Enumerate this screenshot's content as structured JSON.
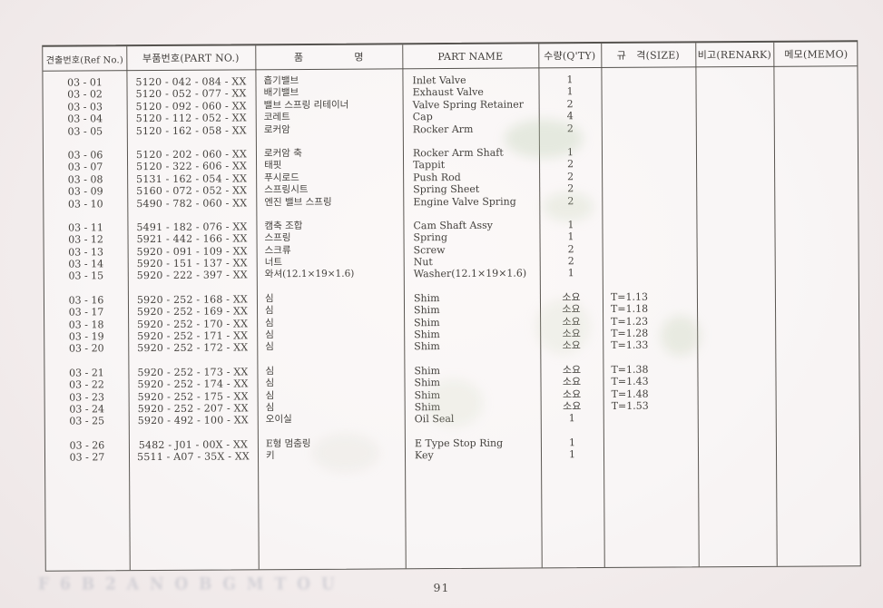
{
  "table": {
    "columns": [
      {
        "label": "견출번호(Ref No.)"
      },
      {
        "label": "부품번호(PART NO.)"
      },
      {
        "label": "품     명"
      },
      {
        "label": "PART NAME"
      },
      {
        "label": "수량(Q'TY)"
      },
      {
        "label": "규 격(SIZE)"
      },
      {
        "label": "비고(RENARK)"
      },
      {
        "label": "메모(MEMO)"
      }
    ],
    "groups": [
      {
        "rows": [
          [
            "03 - 01",
            "5120 - 042 - 084 - XX",
            "흡기밸브",
            "Inlet Valve",
            "1",
            "",
            "",
            ""
          ],
          [
            "03 - 02",
            "5120 - 052 - 077 - XX",
            "배기밸브",
            "Exhaust Valve",
            "1",
            "",
            "",
            ""
          ],
          [
            "03 - 03",
            "5120 - 092 - 060 - XX",
            "밸브 스프링 리테이너",
            "Valve Spring Retainer",
            "2",
            "",
            "",
            ""
          ],
          [
            "03 - 04",
            "5120 - 112 - 052 - XX",
            "코레트",
            "Cap",
            "4",
            "",
            "",
            ""
          ],
          [
            "03 - 05",
            "5120 - 162 - 058 - XX",
            "로커암",
            "Rocker Arm",
            "2",
            "",
            "",
            ""
          ]
        ]
      },
      {
        "rows": [
          [
            "03 - 06",
            "5120 - 202 - 060 - XX",
            "로커암 축",
            "Rocker Arm Shaft",
            "1",
            "",
            "",
            ""
          ],
          [
            "03 - 07",
            "5120 - 322 - 606 - XX",
            "태핏",
            "Tappit",
            "2",
            "",
            "",
            ""
          ],
          [
            "03 - 08",
            "5131 - 162 - 054 - XX",
            "푸시로드",
            "Push Rod",
            "2",
            "",
            "",
            ""
          ],
          [
            "03 - 09",
            "5160 - 072 - 052 - XX",
            "스프링시트",
            "Spring Sheet",
            "2",
            "",
            "",
            ""
          ],
          [
            "03 - 10",
            "5490 - 782 - 060 - XX",
            "엔진 밸브 스프링",
            "Engine Valve Spring",
            "2",
            "",
            "",
            ""
          ]
        ]
      },
      {
        "rows": [
          [
            "03 - 11",
            "5491 - 182 - 076 - XX",
            "캠축 조합",
            "Cam Shaft Assy",
            "1",
            "",
            "",
            ""
          ],
          [
            "03 - 12",
            "5921 - 442 - 166 - XX",
            "스프링",
            "Spring",
            "1",
            "",
            "",
            ""
          ],
          [
            "03 - 13",
            "5920 - 091 - 109 - XX",
            "스크류",
            "Screw",
            "2",
            "",
            "",
            ""
          ],
          [
            "03 - 14",
            "5920 - 151 - 137 - XX",
            "너트",
            "Nut",
            "2",
            "",
            "",
            ""
          ],
          [
            "03 - 15",
            "5920 - 222 - 397 - XX",
            "와셔(12.1×19×1.6)",
            "Washer(12.1×19×1.6)",
            "1",
            "",
            "",
            ""
          ]
        ]
      },
      {
        "rows": [
          [
            "03 - 16",
            "5920 - 252 - 168 - XX",
            "심",
            "Shim",
            "소요",
            "T=1.13",
            "",
            ""
          ],
          [
            "03 - 17",
            "5920 - 252 - 169 - XX",
            "심",
            "Shim",
            "소요",
            "T=1.18",
            "",
            ""
          ],
          [
            "03 - 18",
            "5920 - 252 - 170 - XX",
            "심",
            "Shim",
            "소요",
            "T=1.23",
            "",
            ""
          ],
          [
            "03 - 19",
            "5920 - 252 - 171 - XX",
            "심",
            "Shim",
            "소요",
            "T=1.28",
            "",
            ""
          ],
          [
            "03 - 20",
            "5920 - 252 - 172 - XX",
            "심",
            "Shim",
            "소요",
            "T=1.33",
            "",
            ""
          ]
        ]
      },
      {
        "rows": [
          [
            "03 - 21",
            "5920 - 252 - 173 - XX",
            "심",
            "Shim",
            "소요",
            "T=1.38",
            "",
            ""
          ],
          [
            "03 - 22",
            "5920 - 252 - 174 - XX",
            "심",
            "Shim",
            "소요",
            "T=1.43",
            "",
            ""
          ],
          [
            "03 - 23",
            "5920 - 252 - 175 - XX",
            "심",
            "Shim",
            "소요",
            "T=1.48",
            "",
            ""
          ],
          [
            "03 - 24",
            "5920 - 252 - 207 - XX",
            "심",
            "Shim",
            "소요",
            "T=1.53",
            "",
            ""
          ],
          [
            "03 - 25",
            "5920 - 492 - 100 - XX",
            "오이실",
            "Oil Seal",
            "1",
            "",
            "",
            ""
          ]
        ]
      },
      {
        "rows": [
          [
            "03 - 26",
            "5482 - J01 - 00X - XX",
            "E형 멈춤링",
            "E Type Stop Ring",
            "1",
            "",
            "",
            ""
          ],
          [
            "03 - 27",
            "5511 - A07 - 35X - XX",
            "키",
            "Key",
            "1",
            "",
            "",
            ""
          ]
        ]
      }
    ]
  },
  "footer": {
    "page_number": "91",
    "bleed_text": "F 6 B 2 A N O B G M T O U"
  },
  "colors": {
    "paper": "#f4eeee",
    "line": "#55524e",
    "ink": "#44413d"
  }
}
